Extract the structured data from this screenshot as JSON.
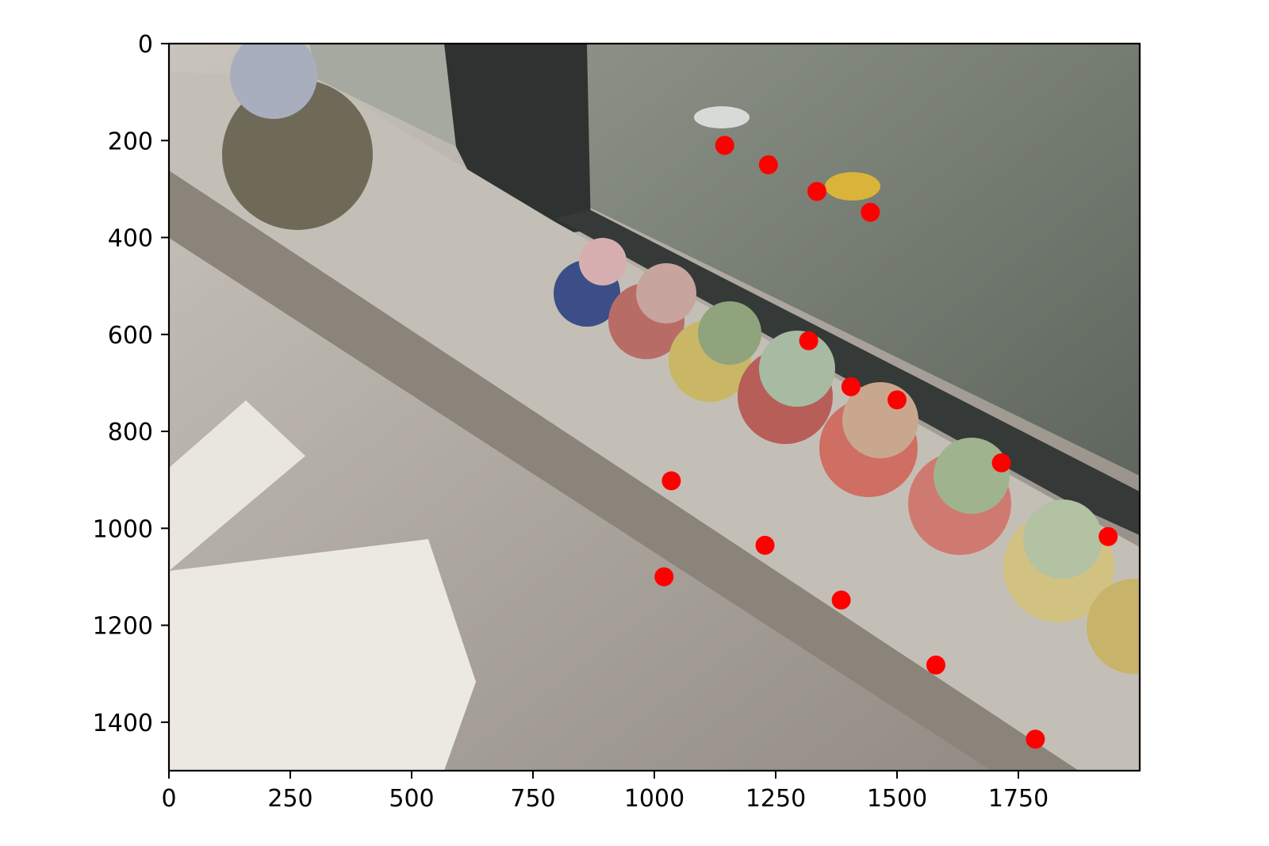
{
  "chart_data": {
    "type": "scatter",
    "title": "",
    "xlabel": "",
    "ylabel": "",
    "xlim": [
      0,
      2000
    ],
    "ylim": [
      1500,
      0
    ],
    "y_inverted": true,
    "grid": false,
    "background": "photo of potted succulents on a windowsill",
    "marker_color": "#ff0000",
    "x_ticks": [
      0,
      250,
      500,
      750,
      1000,
      1250,
      1500,
      1750
    ],
    "y_ticks": [
      0,
      200,
      400,
      600,
      800,
      1000,
      1200,
      1400
    ],
    "points": [
      {
        "x": 1145,
        "y": 210
      },
      {
        "x": 1235,
        "y": 250
      },
      {
        "x": 1335,
        "y": 305
      },
      {
        "x": 1445,
        "y": 348
      },
      {
        "x": 1318,
        "y": 613
      },
      {
        "x": 1405,
        "y": 708
      },
      {
        "x": 1500,
        "y": 735
      },
      {
        "x": 1715,
        "y": 865
      },
      {
        "x": 1935,
        "y": 1017
      },
      {
        "x": 1035,
        "y": 902
      },
      {
        "x": 1020,
        "y": 1100
      },
      {
        "x": 1228,
        "y": 1035
      },
      {
        "x": 1385,
        "y": 1148
      },
      {
        "x": 1580,
        "y": 1282
      },
      {
        "x": 1785,
        "y": 1435
      }
    ]
  }
}
